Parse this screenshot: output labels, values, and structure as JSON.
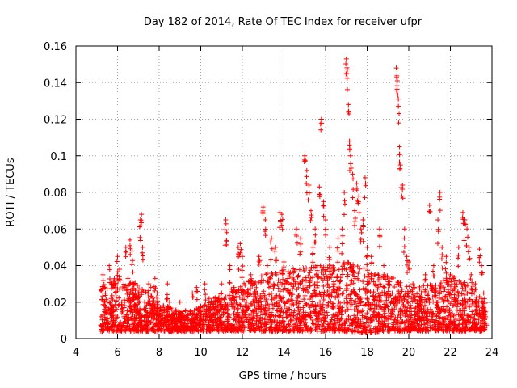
{
  "chart_data": {
    "type": "scatter",
    "title": "Day 182 of 2014, Rate Of TEC Index for receiver ufpr",
    "xlabel": "GPS time / hours",
    "ylabel": "ROTI / TECUs",
    "xlim": [
      4,
      24
    ],
    "ylim": [
      0,
      0.16
    ],
    "x_ticks": [
      4,
      6,
      8,
      10,
      12,
      14,
      16,
      18,
      20,
      22,
      24
    ],
    "x_tick_labels": [
      "4",
      "6",
      "8",
      "10",
      "12",
      "14",
      "16",
      "18",
      "20",
      "22",
      "24"
    ],
    "y_ticks": [
      0,
      0.02,
      0.04,
      0.06,
      0.08,
      0.1,
      0.12,
      0.14,
      0.16
    ],
    "y_tick_labels": [
      "0",
      "0.02",
      "0.04",
      "0.06",
      "0.08",
      "0.1",
      "0.12",
      "0.14",
      "0.16"
    ],
    "grid": true,
    "marker": "+",
    "color": "#ff0000",
    "series": [
      {
        "name": "ROTI",
        "points": [
          [
            5.2,
            0.012
          ],
          [
            5.3,
            0.035
          ],
          [
            5.4,
            0.028
          ],
          [
            5.5,
            0.015
          ],
          [
            5.6,
            0.04
          ],
          [
            5.7,
            0.022
          ],
          [
            5.8,
            0.01
          ],
          [
            5.9,
            0.03
          ],
          [
            6.0,
            0.045
          ],
          [
            6.1,
            0.038
          ],
          [
            6.2,
            0.02
          ],
          [
            6.3,
            0.012
          ],
          [
            6.4,
            0.05
          ],
          [
            6.5,
            0.033
          ],
          [
            6.6,
            0.054
          ],
          [
            6.7,
            0.048
          ],
          [
            6.8,
            0.03
          ],
          [
            6.9,
            0.015
          ],
          [
            7.0,
            0.025
          ],
          [
            7.1,
            0.065
          ],
          [
            7.15,
            0.068
          ],
          [
            7.2,
            0.05
          ],
          [
            7.3,
            0.02
          ],
          [
            7.4,
            0.012
          ],
          [
            7.5,
            0.03
          ],
          [
            7.6,
            0.028
          ],
          [
            7.7,
            0.018
          ],
          [
            7.8,
            0.033
          ],
          [
            7.9,
            0.025
          ],
          [
            8.0,
            0.012
          ],
          [
            8.2,
            0.018
          ],
          [
            8.4,
            0.03
          ],
          [
            8.5,
            0.02
          ],
          [
            8.6,
            0.011
          ],
          [
            8.8,
            0.015
          ],
          [
            9.0,
            0.02
          ],
          [
            9.2,
            0.012
          ],
          [
            9.4,
            0.01
          ],
          [
            9.6,
            0.025
          ],
          [
            9.8,
            0.028
          ],
          [
            10.0,
            0.012
          ],
          [
            10.2,
            0.03
          ],
          [
            10.4,
            0.022
          ],
          [
            10.6,
            0.014
          ],
          [
            10.8,
            0.018
          ],
          [
            11.0,
            0.03
          ],
          [
            11.2,
            0.065
          ],
          [
            11.25,
            0.058
          ],
          [
            11.4,
            0.04
          ],
          [
            11.6,
            0.028
          ],
          [
            11.8,
            0.05
          ],
          [
            11.9,
            0.052
          ],
          [
            12.0,
            0.045
          ],
          [
            12.2,
            0.02
          ],
          [
            12.4,
            0.035
          ],
          [
            12.6,
            0.03
          ],
          [
            12.8,
            0.045
          ],
          [
            13.0,
            0.072
          ],
          [
            13.1,
            0.065
          ],
          [
            13.2,
            0.04
          ],
          [
            13.4,
            0.055
          ],
          [
            13.6,
            0.05
          ],
          [
            13.8,
            0.069
          ],
          [
            13.9,
            0.068
          ],
          [
            14.0,
            0.042
          ],
          [
            14.2,
            0.03
          ],
          [
            14.4,
            0.025
          ],
          [
            14.6,
            0.06
          ],
          [
            14.8,
            0.055
          ],
          [
            15.0,
            0.1
          ],
          [
            15.1,
            0.092
          ],
          [
            15.2,
            0.084
          ],
          [
            15.3,
            0.07
          ],
          [
            15.4,
            0.05
          ],
          [
            15.5,
            0.06
          ],
          [
            15.6,
            0.04
          ],
          [
            15.7,
            0.083
          ],
          [
            15.8,
            0.12
          ],
          [
            15.9,
            0.075
          ],
          [
            16.0,
            0.065
          ],
          [
            16.2,
            0.05
          ],
          [
            16.4,
            0.03
          ],
          [
            16.6,
            0.055
          ],
          [
            16.8,
            0.06
          ],
          [
            16.9,
            0.08
          ],
          [
            17.0,
            0.153
          ],
          [
            17.05,
            0.147
          ],
          [
            17.1,
            0.128
          ],
          [
            17.15,
            0.108
          ],
          [
            17.2,
            0.1
          ],
          [
            17.3,
            0.09
          ],
          [
            17.4,
            0.07
          ],
          [
            17.5,
            0.085
          ],
          [
            17.6,
            0.078
          ],
          [
            17.7,
            0.06
          ],
          [
            17.8,
            0.065
          ],
          [
            17.9,
            0.088
          ],
          [
            18.0,
            0.05
          ],
          [
            18.2,
            0.045
          ],
          [
            18.4,
            0.035
          ],
          [
            18.6,
            0.06
          ],
          [
            18.8,
            0.04
          ],
          [
            19.0,
            0.03
          ],
          [
            19.2,
            0.025
          ],
          [
            19.4,
            0.148
          ],
          [
            19.45,
            0.141
          ],
          [
            19.5,
            0.131
          ],
          [
            19.55,
            0.105
          ],
          [
            19.6,
            0.095
          ],
          [
            19.7,
            0.084
          ],
          [
            19.8,
            0.06
          ],
          [
            19.9,
            0.045
          ],
          [
            20.0,
            0.042
          ],
          [
            20.2,
            0.03
          ],
          [
            20.4,
            0.02
          ],
          [
            20.6,
            0.025
          ],
          [
            20.8,
            0.035
          ],
          [
            21.0,
            0.073
          ],
          [
            21.2,
            0.04
          ],
          [
            21.4,
            0.065
          ],
          [
            21.5,
            0.08
          ],
          [
            21.6,
            0.05
          ],
          [
            21.8,
            0.045
          ],
          [
            22.0,
            0.035
          ],
          [
            22.2,
            0.03
          ],
          [
            22.4,
            0.05
          ],
          [
            22.6,
            0.069
          ],
          [
            22.7,
            0.065
          ],
          [
            22.8,
            0.06
          ],
          [
            22.9,
            0.05
          ],
          [
            23.0,
            0.035
          ],
          [
            23.2,
            0.03
          ],
          [
            23.4,
            0.049
          ],
          [
            23.5,
            0.04
          ],
          [
            23.6,
            0.025
          ],
          [
            23.7,
            0.012
          ]
        ]
      }
    ],
    "dense_background": [
      [
        5.2,
        0.004,
        0.03
      ],
      [
        6.0,
        0.004,
        0.035
      ],
      [
        7.0,
        0.004,
        0.03
      ],
      [
        8.0,
        0.004,
        0.02
      ],
      [
        9.0,
        0.004,
        0.015
      ],
      [
        10.0,
        0.004,
        0.018
      ],
      [
        11.0,
        0.004,
        0.025
      ],
      [
        12.0,
        0.004,
        0.03
      ],
      [
        13.0,
        0.004,
        0.035
      ],
      [
        14.0,
        0.004,
        0.038
      ],
      [
        15.0,
        0.004,
        0.04
      ],
      [
        16.0,
        0.004,
        0.04
      ],
      [
        17.0,
        0.004,
        0.042
      ],
      [
        18.0,
        0.003,
        0.038
      ],
      [
        19.0,
        0.004,
        0.035
      ],
      [
        20.0,
        0.004,
        0.028
      ],
      [
        21.0,
        0.004,
        0.03
      ],
      [
        22.0,
        0.004,
        0.035
      ],
      [
        23.0,
        0.004,
        0.03
      ],
      [
        23.7,
        0.004,
        0.02
      ]
    ]
  }
}
